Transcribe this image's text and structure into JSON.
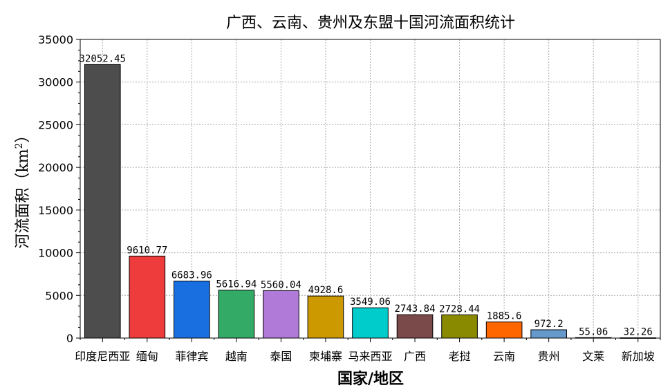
{
  "chart_data": {
    "type": "bar",
    "title": "广西、云南、贵州及东盟十国河流面积统计",
    "xlabel": "国家/地区",
    "ylabel_main": "河流面积（km",
    "ylabel_sup": "2",
    "ylabel_end": "）",
    "ylim": [
      0,
      35000
    ],
    "yticks": [
      0,
      5000,
      10000,
      15000,
      20000,
      25000,
      30000,
      35000
    ],
    "grid": true,
    "categories": [
      "印度尼西亚",
      "缅甸",
      "菲律宾",
      "越南",
      "泰国",
      "柬埔寨",
      "马来西亚",
      "广西",
      "老挝",
      "云南",
      "贵州",
      "文莱",
      "新加坡"
    ],
    "values": [
      32052.45,
      9610.77,
      6683.96,
      5616.94,
      5560.04,
      4928.6,
      3549.06,
      2743.84,
      2728.44,
      1885.6,
      972.2,
      55.06,
      32.26
    ],
    "value_labels": [
      "32052.45",
      "9610.77",
      "6683.96",
      "5616.94",
      "5560.04",
      "4928.6",
      "3549.06",
      "2743.84",
      "2728.44",
      "1885.6",
      "972.2",
      "55.06",
      "32.26"
    ],
    "colors": [
      "#4d4d4d",
      "#ee3c3c",
      "#1a6fe0",
      "#33aa66",
      "#b07ad8",
      "#cc9900",
      "#00cccc",
      "#7a4a4a",
      "#8a8a00",
      "#ff6600",
      "#6699cc",
      "#ffffff",
      "#ffffff"
    ]
  }
}
